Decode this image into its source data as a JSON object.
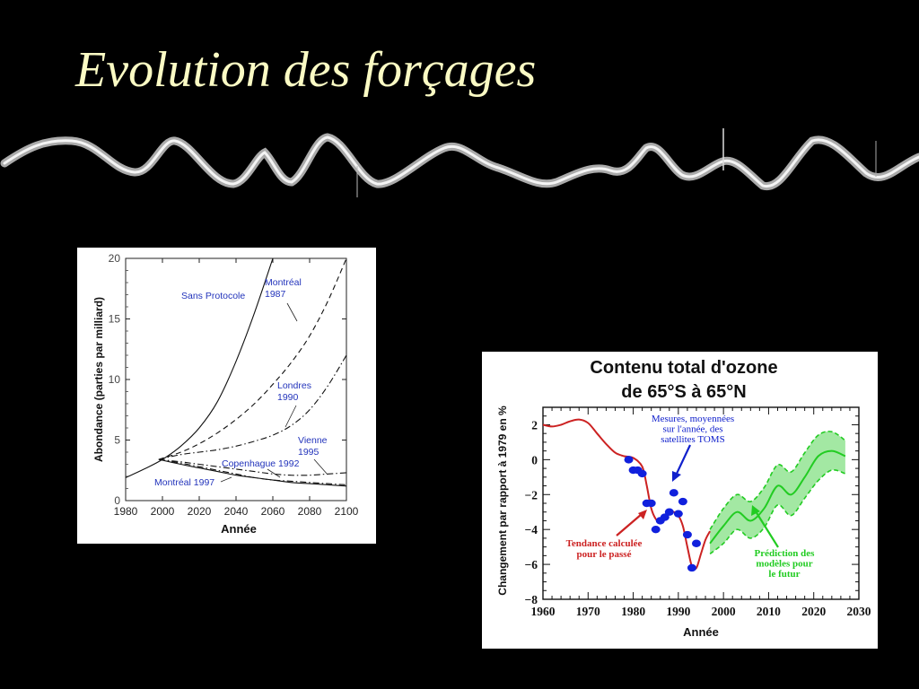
{
  "slide": {
    "title": "Evolution des forçages"
  },
  "chart_data": [
    {
      "type": "line",
      "title": "",
      "xlabel": "Année",
      "ylabel": "Abondance (parties par milliard)",
      "xlim": [
        1980,
        2100
      ],
      "ylim": [
        0,
        20
      ],
      "x_ticks": [
        1980,
        2000,
        2020,
        2040,
        2060,
        2080,
        2100
      ],
      "y_ticks": [
        0,
        5,
        10,
        15,
        20
      ],
      "colors": {
        "line": "#111111",
        "annotation": "#2233bb"
      },
      "series": [
        {
          "name": "Sans Protocole",
          "dash": "solid",
          "x": [
            1980,
            1990,
            2000,
            2010,
            2020,
            2030,
            2040,
            2050,
            2060
          ],
          "y": [
            1.9,
            2.6,
            3.4,
            4.5,
            6.0,
            8.2,
            11.5,
            15.5,
            20.0
          ]
        },
        {
          "name": "Montréal 1987",
          "dash": "dashed",
          "x": [
            1998,
            2010,
            2020,
            2030,
            2040,
            2050,
            2060,
            2070,
            2080,
            2090,
            2100
          ],
          "y": [
            3.4,
            4.0,
            4.7,
            5.6,
            6.7,
            8.0,
            9.6,
            11.4,
            13.6,
            16.5,
            20.0
          ]
        },
        {
          "name": "Londres 1990",
          "dash": "dashdot",
          "x": [
            1998,
            2010,
            2020,
            2030,
            2040,
            2050,
            2060,
            2070,
            2080,
            2090,
            2100
          ],
          "y": [
            3.4,
            3.8,
            4.0,
            4.2,
            4.5,
            4.9,
            5.4,
            6.2,
            7.5,
            9.5,
            12.0
          ]
        },
        {
          "name": "Vienne 1995",
          "dash": "dashdot",
          "x": [
            1998,
            2010,
            2020,
            2030,
            2040,
            2050,
            2060,
            2070,
            2080,
            2090,
            2100
          ],
          "y": [
            3.4,
            3.2,
            3.0,
            2.8,
            2.6,
            2.4,
            2.2,
            2.1,
            2.1,
            2.2,
            2.3
          ]
        },
        {
          "name": "Copenhague 1992",
          "dash": "dashdot",
          "x": [
            1998,
            2010,
            2020,
            2030,
            2040,
            2050,
            2060,
            2070,
            2080,
            2090,
            2100
          ],
          "y": [
            3.4,
            3.1,
            2.8,
            2.5,
            2.2,
            1.9,
            1.7,
            1.6,
            1.5,
            1.4,
            1.3
          ]
        },
        {
          "name": "Montréal 1997",
          "dash": "solid",
          "x": [
            1998,
            2010,
            2020,
            2030,
            2040,
            2050,
            2060,
            2070,
            2080,
            2090,
            2100
          ],
          "y": [
            3.4,
            3.0,
            2.7,
            2.4,
            2.1,
            1.9,
            1.7,
            1.5,
            1.4,
            1.3,
            1.2
          ]
        }
      ],
      "annotations": [
        {
          "id": "sans-protocole",
          "lines": [
            "Sans Protocole"
          ]
        },
        {
          "id": "montreal-1987",
          "lines": [
            "Montréal",
            "1987"
          ]
        },
        {
          "id": "londres-1990",
          "lines": [
            "Londres",
            "1990"
          ]
        },
        {
          "id": "vienne-1995",
          "lines": [
            "Vienne",
            "1995"
          ]
        },
        {
          "id": "copenhague-1992",
          "lines": [
            "Copenhague 1992"
          ]
        },
        {
          "id": "montreal-1997",
          "lines": [
            "Montréal 1997"
          ]
        }
      ]
    },
    {
      "type": "line",
      "title": "Contenu total d'ozone",
      "subtitle": "de 65°S à 65°N",
      "xlabel": "Année",
      "ylabel": "Changement par rapport à 1979 en %",
      "xlim": [
        1960,
        2030
      ],
      "ylim": [
        -8,
        3
      ],
      "x_ticks": [
        1960,
        1970,
        1980,
        1990,
        2000,
        2010,
        2020,
        2030
      ],
      "y_ticks": [
        2,
        0,
        -2,
        -4,
        -6,
        -8
      ],
      "y_tick_labels": [
        "2",
        "0",
        "−2",
        "−4",
        "−6",
        "−8"
      ],
      "colors": {
        "trend": "#cc2222",
        "measure": "#1020dd",
        "model": "#22cc22",
        "band": "#99e699",
        "annotation": "#1020cc"
      },
      "trend": {
        "name": "Tendance calculée pour le passé",
        "x": [
          1960,
          1962,
          1964,
          1966,
          1968,
          1970,
          1972,
          1974,
          1976,
          1978,
          1980,
          1982,
          1983,
          1984,
          1985,
          1986,
          1987,
          1988,
          1989,
          1990,
          1991,
          1992,
          1993,
          1994,
          1995,
          1996,
          1997
        ],
        "y": [
          2.0,
          1.9,
          2.0,
          2.2,
          2.3,
          2.1,
          1.5,
          0.9,
          0.4,
          0.2,
          0.1,
          -0.4,
          -1.5,
          -2.8,
          -3.4,
          -3.6,
          -3.3,
          -3.0,
          -3.0,
          -3.2,
          -3.8,
          -5.0,
          -6.1,
          -6.2,
          -5.4,
          -4.6,
          -4.1
        ]
      },
      "measures": {
        "name": "Mesures, moyennées sur l'année, des satellites TOMS",
        "x": [
          1979,
          1980,
          1981,
          1982,
          1983,
          1984,
          1985,
          1986,
          1987,
          1988,
          1989,
          1990,
          1991,
          1992,
          1993,
          1994
        ],
        "y": [
          0.0,
          -0.6,
          -0.6,
          -0.8,
          -2.5,
          -2.5,
          -4.0,
          -3.5,
          -3.3,
          -3.0,
          -1.9,
          -3.1,
          -2.4,
          -4.3,
          -6.2,
          -4.8
        ]
      },
      "model": {
        "name": "Prédiction des modèles pour le futur",
        "x": [
          1997,
          2000,
          2003,
          2006,
          2009,
          2012,
          2015,
          2018,
          2021,
          2024,
          2027
        ],
        "mid": [
          -4.8,
          -3.8,
          -3.0,
          -3.5,
          -2.8,
          -1.5,
          -2.0,
          -1.0,
          0.2,
          0.5,
          0.2
        ],
        "upper": [
          -4.0,
          -2.8,
          -2.0,
          -2.4,
          -1.6,
          -0.3,
          -0.7,
          0.4,
          1.4,
          1.6,
          1.1
        ],
        "lower": [
          -5.4,
          -4.8,
          -4.0,
          -4.5,
          -3.9,
          -2.6,
          -3.2,
          -2.2,
          -1.2,
          -0.6,
          -0.8
        ]
      },
      "annotations": [
        {
          "id": "mesures",
          "lines": [
            "Mesures, moyennées",
            "sur l'année, des",
            "satellites TOMS"
          ]
        },
        {
          "id": "tendance",
          "lines": [
            "Tendance calculée",
            "pour le passé"
          ]
        },
        {
          "id": "prediction",
          "lines": [
            "Prédiction des",
            "modèles pour",
            "le futur"
          ]
        }
      ]
    }
  ]
}
